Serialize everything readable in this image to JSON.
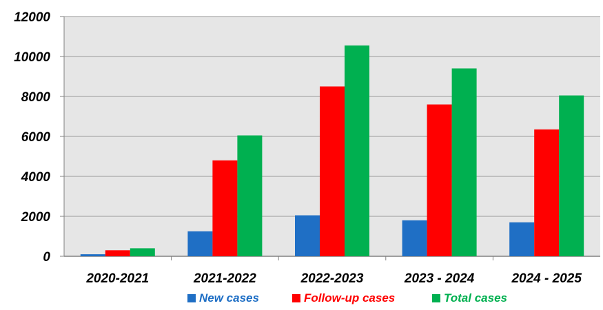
{
  "chart_data": {
    "type": "bar",
    "categories": [
      "2020-2021",
      "2021-2022",
      "2022-2023",
      "2023 - 2024",
      "2024 - 2025"
    ],
    "series": [
      {
        "name": "New cases",
        "color": "#1f6fc5",
        "values": [
          100,
          1250,
          2050,
          1800,
          1700
        ]
      },
      {
        "name": "Follow-up cases",
        "color": "#ff0000",
        "values": [
          300,
          4800,
          8500,
          7600,
          6350
        ]
      },
      {
        "name": "Total cases",
        "color": "#00b050",
        "values": [
          400,
          6050,
          10550,
          9400,
          8050
        ]
      }
    ],
    "ylim": [
      0,
      12000
    ],
    "yticks": [
      "0",
      "2000",
      "4000",
      "6000",
      "8000",
      "10000",
      "12000"
    ],
    "grid": true,
    "plot_background": "#e6e6e6",
    "legend_position": "bottom"
  }
}
